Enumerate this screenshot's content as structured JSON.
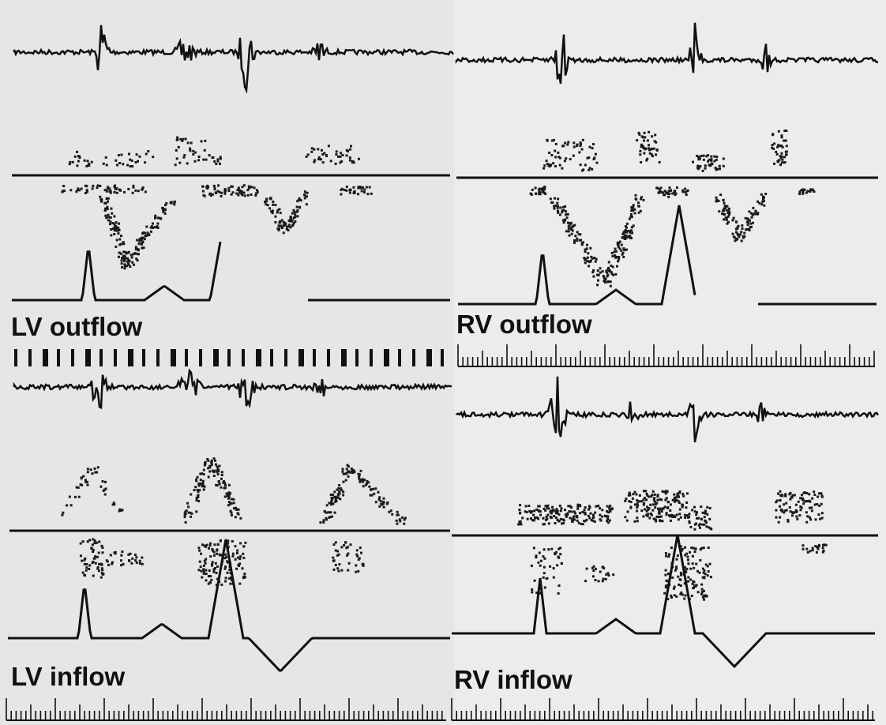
{
  "panels": [
    {
      "label": "LV outflow"
    },
    {
      "label": "RV outflow"
    },
    {
      "label": "LV inflow"
    },
    {
      "label": "RV inflow"
    }
  ]
}
